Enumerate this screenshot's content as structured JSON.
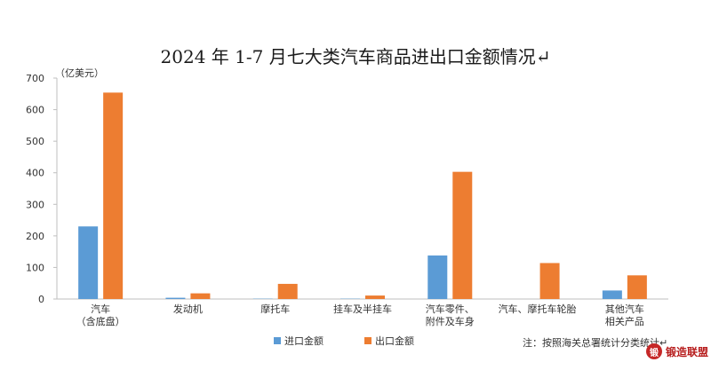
{
  "chart_data": {
    "type": "bar",
    "title": "2024 年 1-7 月七大类汽车商品进出口金额情况↵",
    "unit_label": "（亿美元）",
    "ylim": [
      0,
      700
    ],
    "yticks": [
      0,
      100,
      200,
      300,
      400,
      500,
      600,
      700
    ],
    "categories": [
      [
        "汽车",
        "（含底盘）"
      ],
      [
        "发动机"
      ],
      [
        "摩托车"
      ],
      [
        "挂车及半挂车"
      ],
      [
        "汽车零件、",
        "附件及车身"
      ],
      [
        "汽车、摩托车轮胎"
      ],
      [
        "其他汽车",
        "相关产品"
      ]
    ],
    "series": [
      {
        "name": "进口金额",
        "color": "#5b9bd5",
        "values": [
          230,
          4,
          1,
          1,
          138,
          0,
          27
        ]
      },
      {
        "name": "出口金额",
        "color": "#ed7d31",
        "values": [
          654,
          18,
          48,
          11,
          403,
          114,
          75
        ]
      }
    ],
    "grid": false,
    "legend_position": "bottom-left"
  },
  "note": "注：按照海关总署统计分类统计↵",
  "logo": {
    "mark": "锻",
    "text": "锻造联盟"
  }
}
